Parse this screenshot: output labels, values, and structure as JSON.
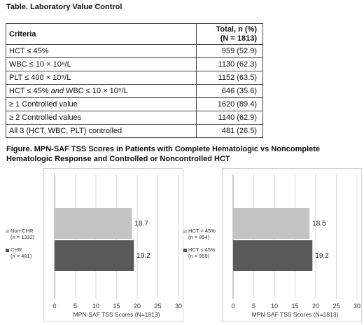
{
  "table": {
    "title": "Table. Laboratory Value Control",
    "header": {
      "criteria": "Criteria",
      "total_line1": "Total, n (%)",
      "total_line2": "(N = 1813)"
    },
    "rows": [
      {
        "criteria": "HCT ≤ 45%",
        "value": "959 (52.9)"
      },
      {
        "criteria": "WBC ≤ 10 × 10⁹/L",
        "value": "1130 (62.3)"
      },
      {
        "criteria": "PLT ≤ 400 × 10⁹/L",
        "value": "1152 (63.5)"
      },
      {
        "criteria_pre": "HCT ≤ 45% ",
        "criteria_em": "and",
        "criteria_post": " WBC ≤ 10 × 10⁹/L",
        "value": "646 (35.6)"
      },
      {
        "criteria": "≥ 1 Controlled value",
        "value": "1620 (89.4)"
      },
      {
        "criteria": "≥ 2 Controlled values",
        "value": "1140 (62.9)"
      },
      {
        "criteria": "All 3 (HCT, WBC, PLT) controlled",
        "value": "481 (26.5)"
      }
    ]
  },
  "figure": {
    "title": "Figure. MPN-SAF TSS Scores in Patients with Complete Hematologic vs Noncomplete Hematologic Response and Controlled or Noncontrolled HCT"
  },
  "colors": {
    "light_bar": "#c4c4c4",
    "dark_bar": "#595959"
  },
  "chart_data": [
    {
      "type": "bar",
      "orientation": "horizontal",
      "categories": [
        "Non-CHR (n = 1332)",
        "CHR (n = 481)"
      ],
      "legend": [
        {
          "line1": "Non-CHR",
          "line2": "(n = 1332)",
          "color": "#c4c4c4"
        },
        {
          "line1": "CHR",
          "line2": "(n = 481)",
          "color": "#595959"
        }
      ],
      "values": [
        18.7,
        19.2
      ],
      "data_labels": [
        "18.7",
        "19.2"
      ],
      "xlabel": "MPN-SAF TSS Scores (N=1813)",
      "xlim": [
        0,
        30
      ],
      "xticks": [
        "0",
        "5",
        "10",
        "15",
        "20",
        "25",
        "30"
      ],
      "grid": true
    },
    {
      "type": "bar",
      "orientation": "horizontal",
      "categories": [
        "HCT > 45% (n = 854)",
        "HCT ≤ 45% (n = 959)"
      ],
      "legend": [
        {
          "line1": "HCT > 45%",
          "line2": "(n = 854)",
          "color": "#c4c4c4"
        },
        {
          "line1": "HCT ≤ 45%",
          "line2": "(n = 959)",
          "color": "#595959"
        }
      ],
      "values": [
        18.5,
        19.2
      ],
      "data_labels": [
        "18.5",
        "19.2"
      ],
      "xlabel": "MPN-SAF TSS Scores (N=1813)",
      "xlim": [
        0,
        30
      ],
      "xticks": [
        "0",
        "5",
        "10",
        "15",
        "20",
        "25",
        "30"
      ],
      "grid": true
    }
  ]
}
